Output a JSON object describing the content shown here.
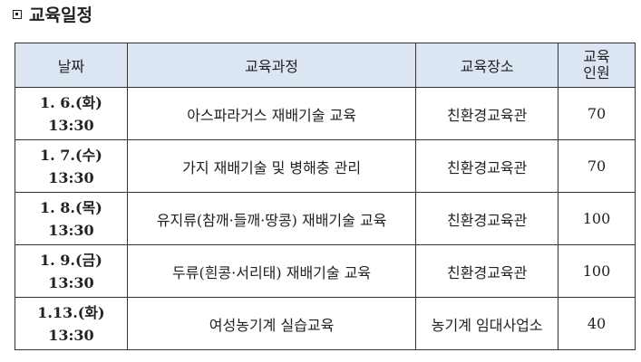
{
  "title": "교육일정",
  "table": {
    "headers": [
      "날짜",
      "교육과정",
      "교육장소",
      "교육",
      "인원"
    ],
    "rows": [
      {
        "date": "1. 6.(화)",
        "time": "13:30",
        "course": "아스파라거스 재배기술 교육",
        "place": "친환경교육관",
        "count": "70"
      },
      {
        "date": "1. 7.(수)",
        "time": "13:30",
        "course": "가지 재배기술 및 병해충 관리",
        "place": "친환경교육관",
        "count": "70"
      },
      {
        "date": "1. 8.(목)",
        "time": "13:30",
        "course": "유지류(참깨·들깨·땅콩) 재배기술 교육",
        "place": "친환경교육관",
        "count": "100"
      },
      {
        "date": "1. 9.(금)",
        "time": "13:30",
        "course": "두류(흰콩·서리태) 재배기술 교육",
        "place": "친환경교육관",
        "count": "100"
      },
      {
        "date": "1.13.(화)",
        "time": "13:30",
        "course": "여성농기계 실습교육",
        "place": "농기계 임대사업소",
        "count": "40"
      }
    ]
  },
  "colors": {
    "header_bg": "#dce6f2"
  }
}
